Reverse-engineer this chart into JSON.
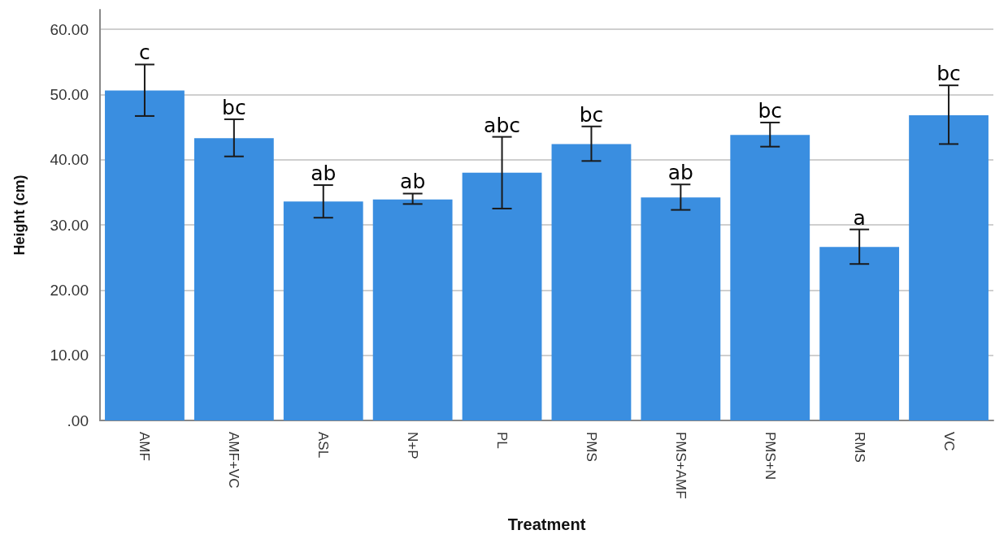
{
  "chart_data": {
    "type": "bar",
    "xlabel": "Treatment",
    "ylabel": "Height (cm)",
    "categories": [
      "AMF",
      "AMF+VC",
      "ASL",
      "N+P",
      "PL",
      "PMS",
      "PMS+AMF",
      "PMS+N",
      "RMS",
      "VC"
    ],
    "values": [
      50.6,
      43.3,
      33.6,
      33.9,
      38.0,
      42.4,
      34.2,
      43.8,
      26.6,
      46.8
    ],
    "errors": [
      [
        46.7,
        54.6
      ],
      [
        40.5,
        46.2
      ],
      [
        31.1,
        36.1
      ],
      [
        33.2,
        34.8
      ],
      [
        32.5,
        43.5
      ],
      [
        39.8,
        45.1
      ],
      [
        32.3,
        36.2
      ],
      [
        42.0,
        45.7
      ],
      [
        24.0,
        29.3
      ],
      [
        42.4,
        51.4
      ]
    ],
    "color": "#3a8ee0",
    "ylim": [
      0,
      63
    ],
    "yticks": [
      {
        "value": 0,
        "label": ".00"
      },
      {
        "value": 10,
        "label": "10.00"
      },
      {
        "value": 20,
        "label": "20.00"
      },
      {
        "value": 30,
        "label": "30.00"
      },
      {
        "value": 40,
        "label": "40.00"
      },
      {
        "value": 50,
        "label": "50.00"
      },
      {
        "value": 60,
        "label": "60.00"
      }
    ],
    "grid": "y",
    "annotations": [
      {
        "text": "c",
        "x": "AMF",
        "y": 54.6
      },
      {
        "text": "bc",
        "x": "AMF+VC",
        "y": 46.2
      },
      {
        "text": "ab",
        "x": "ASL",
        "y": 36.1
      },
      {
        "text": "ab",
        "x": "N+P",
        "y": 34.8
      },
      {
        "text": "abc",
        "x": "PL",
        "y": 43.5
      },
      {
        "text": "bc",
        "x": "PMS",
        "y": 45.1
      },
      {
        "text": "ab",
        "x": "PMS+AMF",
        "y": 36.2
      },
      {
        "text": "bc",
        "x": "PMS+N",
        "y": 45.7
      },
      {
        "text": "a",
        "x": "RMS",
        "y": 29.3
      },
      {
        "text": "bc",
        "x": "VC",
        "y": 51.4
      }
    ]
  }
}
